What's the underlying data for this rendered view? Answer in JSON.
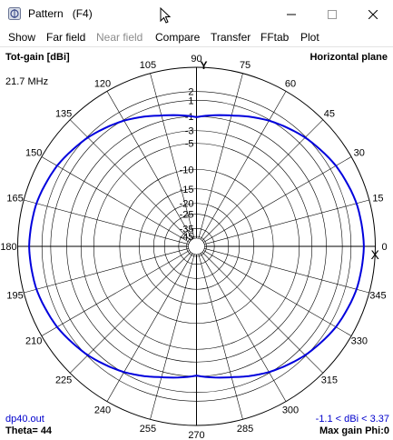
{
  "window": {
    "title": "Pattern   (F4)"
  },
  "menu": {
    "items": [
      {
        "label": "Show",
        "enabled": true
      },
      {
        "label": "Far field",
        "enabled": true
      },
      {
        "label": "Near field",
        "enabled": false
      },
      {
        "label": "Compare",
        "enabled": true
      },
      {
        "label": "Transfer",
        "enabled": true
      },
      {
        "label": "FFtab",
        "enabled": true
      },
      {
        "label": "Plot",
        "enabled": true
      }
    ]
  },
  "plot": {
    "quantity": "Tot-gain [dBi]",
    "frequency": "21.7 MHz",
    "plane": "Horizontal plane",
    "file": "dp40.out",
    "theta": "Theta= 44",
    "gain_range": "-1.1 < dBi < 3.37",
    "max_gain": "Max gain Phi:0",
    "y_axis": "Y",
    "x_axis": "X",
    "trace_color": "#0000dd"
  },
  "chart_data": {
    "type": "polar",
    "angle_ticks": [
      "0",
      "15",
      "30",
      "45",
      "60",
      "75",
      "90",
      "105",
      "120",
      "135",
      "150",
      "165",
      "180",
      "195",
      "210",
      "225",
      "240",
      "255",
      "270",
      "285",
      "300",
      "315",
      "330",
      "345"
    ],
    "radial_labels": [
      "2",
      "1",
      "-1",
      "-3",
      "-5",
      "-10",
      "-15",
      "-20",
      "-25",
      "-35",
      "-45"
    ],
    "series": [
      {
        "phi_deg": [
          0,
          15,
          30,
          45,
          60,
          75,
          90,
          105,
          120,
          135,
          150,
          165,
          180,
          195,
          210,
          225,
          240,
          255,
          270,
          285,
          300,
          315,
          330,
          345
        ],
        "gain_dbi": [
          3.37,
          3.2,
          2.7,
          1.9,
          0.9,
          -0.3,
          -1.1,
          -0.3,
          0.9,
          1.9,
          2.7,
          3.2,
          3.37,
          3.2,
          2.7,
          1.9,
          0.9,
          -0.3,
          -1.1,
          -0.3,
          0.9,
          1.9,
          2.7,
          3.2
        ]
      }
    ]
  }
}
